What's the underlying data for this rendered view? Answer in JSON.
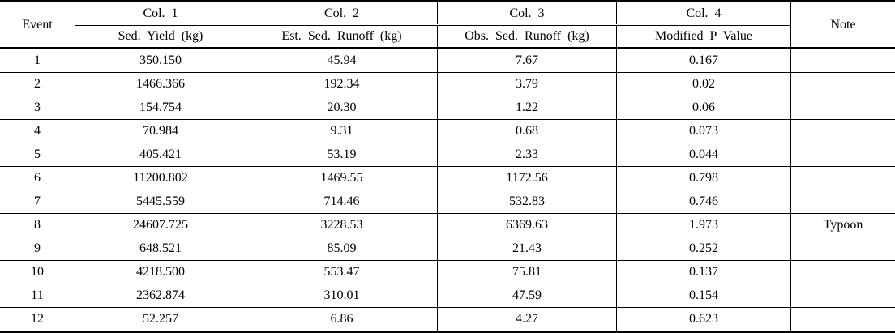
{
  "table": {
    "header": {
      "event": "Event",
      "note": "Note",
      "columns": [
        {
          "title": "Col. 1",
          "subtitle": "Sed. Yield (kg)"
        },
        {
          "title": "Col. 2",
          "subtitle": "Est. Sed. Runoff (kg)"
        },
        {
          "title": "Col. 3",
          "subtitle": "Obs. Sed. Runoff (kg)"
        },
        {
          "title": "Col. 4",
          "subtitle": "Modified P Value"
        }
      ]
    },
    "rows": [
      {
        "event": "1",
        "col1": "350.150",
        "col2": "45.94",
        "col3": "7.67",
        "col4": "0.167",
        "note": ""
      },
      {
        "event": "2",
        "col1": "1466.366",
        "col2": "192.34",
        "col3": "3.79",
        "col4": "0.02",
        "note": ""
      },
      {
        "event": "3",
        "col1": "154.754",
        "col2": "20.30",
        "col3": "1.22",
        "col4": "0.06",
        "note": ""
      },
      {
        "event": "4",
        "col1": "70.984",
        "col2": "9.31",
        "col3": "0.68",
        "col4": "0.073",
        "note": ""
      },
      {
        "event": "5",
        "col1": "405.421",
        "col2": "53.19",
        "col3": "2.33",
        "col4": "0.044",
        "note": ""
      },
      {
        "event": "6",
        "col1": "11200.802",
        "col2": "1469.55",
        "col3": "1172.56",
        "col4": "0.798",
        "note": ""
      },
      {
        "event": "7",
        "col1": "5445.559",
        "col2": "714.46",
        "col3": "532.83",
        "col4": "0.746",
        "note": ""
      },
      {
        "event": "8",
        "col1": "24607.725",
        "col2": "3228.53",
        "col3": "6369.63",
        "col4": "1.973",
        "note": "Typoon"
      },
      {
        "event": "9",
        "col1": "648.521",
        "col2": "85.09",
        "col3": "21.43",
        "col4": "0.252",
        "note": ""
      },
      {
        "event": "10",
        "col1": "4218.500",
        "col2": "553.47",
        "col3": "75.81",
        "col4": "0.137",
        "note": ""
      },
      {
        "event": "11",
        "col1": "2362.874",
        "col2": "310.01",
        "col3": "47.59",
        "col4": "0.154",
        "note": ""
      },
      {
        "event": "12",
        "col1": "52.257",
        "col2": "6.86",
        "col3": "4.27",
        "col4": "0.623",
        "note": ""
      }
    ],
    "colors": {
      "rule": "#000000",
      "background": "#ffffff",
      "text": "#000000"
    }
  }
}
